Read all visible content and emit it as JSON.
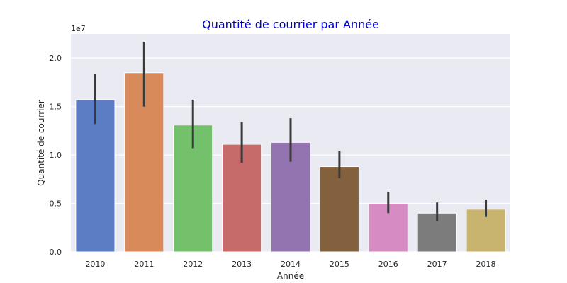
{
  "chart_data": {
    "type": "bar",
    "title": "Quantité de courrier par Année",
    "title_color": "#0000cc",
    "xlabel": "Année",
    "ylabel": "Quantité de courrier",
    "y_scale_label": "1e7",
    "ylim": [
      0,
      2.25
    ],
    "yticks": [
      0.0,
      0.5,
      1.0,
      1.5,
      2.0
    ],
    "ytick_labels": [
      "0.0",
      "0.5",
      "1.0",
      "1.5",
      "2.0"
    ],
    "grid": true,
    "background": "#eaeaf2",
    "categories": [
      "2010",
      "2011",
      "2012",
      "2013",
      "2014",
      "2015",
      "2016",
      "2017",
      "2018"
    ],
    "values": [
      1.57,
      1.85,
      1.31,
      1.11,
      1.13,
      0.88,
      0.5,
      0.4,
      0.44
    ],
    "error_low": [
      1.32,
      1.5,
      1.07,
      0.92,
      0.93,
      0.76,
      0.4,
      0.32,
      0.36
    ],
    "error_high": [
      1.84,
      2.17,
      1.57,
      1.34,
      1.38,
      1.04,
      0.62,
      0.51,
      0.54
    ],
    "colors": [
      "#5a7dc4",
      "#d98a5b",
      "#73c16b",
      "#c76a6a",
      "#9474b0",
      "#83613f",
      "#d68bc2",
      "#7c7c7c",
      "#c9b46f"
    ],
    "error_color": "#3a3a3a"
  }
}
